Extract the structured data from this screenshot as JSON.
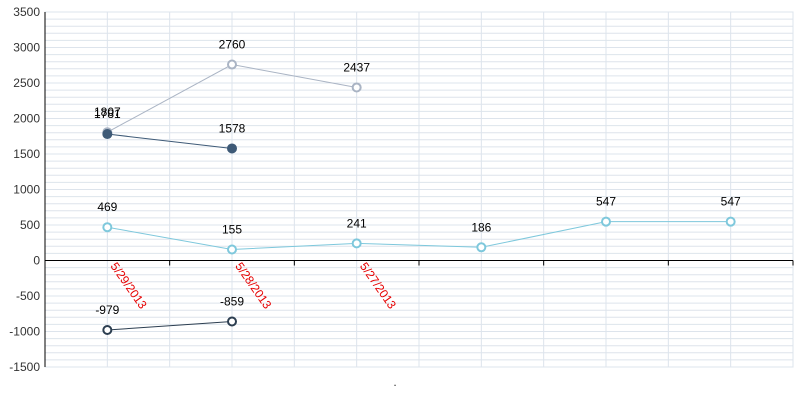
{
  "chart_data": {
    "type": "line",
    "categories": [
      "5/29/2013",
      "5/28/2013",
      "5/27/2013",
      "",
      "",
      ""
    ],
    "ylim": [
      -1500,
      3500
    ],
    "yticks": [
      -1500,
      -1000,
      -500,
      0,
      500,
      1000,
      1500,
      2000,
      2500,
      3000,
      3500
    ],
    "grid": true,
    "xlabel": ".",
    "series": [
      {
        "values": [
          1807,
          2760,
          2437,
          null,
          null,
          null
        ],
        "color": "#aab4c4",
        "filled": false
      },
      {
        "values": [
          1781,
          1578,
          null,
          null,
          null,
          null
        ],
        "color": "#3e5a77",
        "filled": true
      },
      {
        "values": [
          469,
          155,
          241,
          186,
          547,
          547
        ],
        "color": "#7ec8dc",
        "filled": false
      },
      {
        "values": [
          -979,
          -859,
          null,
          null,
          null,
          null
        ],
        "color": "#2c3e50",
        "filled": false
      }
    ],
    "colors": {
      "grid": "#dde4ec",
      "xlabel": "#e60000",
      "axis": "#000000"
    }
  }
}
